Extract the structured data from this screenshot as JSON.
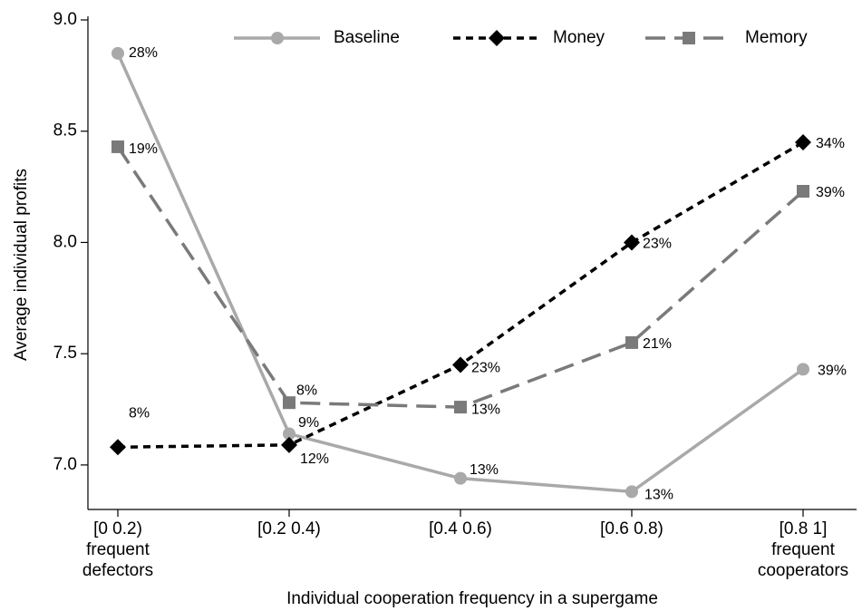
{
  "chart_data": {
    "type": "line",
    "xlabel": "Individual cooperation frequency in a supergame",
    "ylabel": "Average individual profits",
    "categories": [
      "[0 0.2)\nfrequent\ndefectors",
      "[0.2 0.4)",
      "[0.4 0.6)",
      "[0.6 0.8)",
      "[0.8 1]\nfrequent\ncooperators"
    ],
    "ylim": [
      6.8,
      9.0
    ],
    "yticks": [
      {
        "value": 7,
        "label": "7.0"
      },
      7.5,
      {
        "value": 8,
        "label": "8.0"
      },
      8.5,
      {
        "value": 9,
        "label": "9.0"
      }
    ],
    "legend": "top",
    "series": [
      {
        "name": "Baseline",
        "color": "#a9a9a9",
        "marker": "circle",
        "dash": "solid",
        "values": [
          8.85,
          7.14,
          6.94,
          6.88,
          7.43
        ],
        "point_labels": [
          "28%",
          "9%",
          "13%",
          "13%",
          "39%"
        ]
      },
      {
        "name": "Money",
        "color": "#000000",
        "marker": "diamond",
        "dash": "short",
        "values": [
          7.08,
          7.09,
          7.45,
          8.0,
          8.45
        ],
        "point_labels": [
          "8%",
          "12%",
          "23%",
          "23%",
          "34%"
        ]
      },
      {
        "name": "Memory",
        "color": "#7a7a7a",
        "marker": "square",
        "dash": "long",
        "values": [
          8.43,
          7.28,
          7.26,
          7.55,
          8.23
        ],
        "point_labels": [
          "19%",
          "8%",
          "13%",
          "21%",
          "39%"
        ]
      }
    ]
  }
}
